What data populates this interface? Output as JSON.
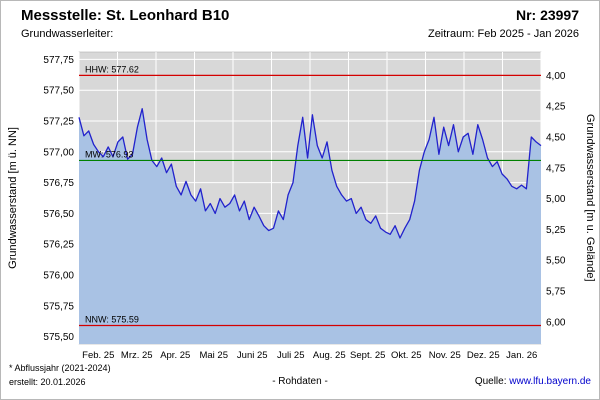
{
  "header": {
    "title": "Messstelle: St. Leonhard B10",
    "number_label": "Nr: 23997",
    "aquifer_label": "Grundwasserleiter:",
    "period_label": "Zeitraum: Feb 2025 - Jan 2026"
  },
  "footer": {
    "note": "* Abflussjahr (2021-2024)",
    "created": "erstellt: 20.01.2026",
    "data_type": "- Rohdaten -",
    "source_label": "Quelle:",
    "source_link": "www.lfu.bayern.de",
    "link_color": "#0000cc"
  },
  "chart_data": {
    "type": "area",
    "title": "",
    "ylabel_left": "Grundwasserstand [m ü. NN]",
    "ylabel_right": "Grundwasserstand [m u. Gelände]",
    "ylim": [
      575.44,
      577.81
    ],
    "grid": true,
    "legend": false,
    "left_ticks": {
      "values": [
        577.75,
        577.5,
        577.25,
        577.0,
        576.75,
        576.5,
        576.25,
        576.0,
        575.75,
        575.5
      ],
      "labels": [
        "577,75",
        "577,50",
        "577,25",
        "577,00",
        "576,75",
        "576,50",
        "576,25",
        "576,00",
        "575,75",
        "575,50"
      ]
    },
    "right_ticks": {
      "ground_elevation": 581.62,
      "depths": [
        4.0,
        4.25,
        4.5,
        4.75,
        5.0,
        5.25,
        5.5,
        5.75,
        6.0
      ],
      "labels": [
        "4,00",
        "4,25",
        "4,50",
        "4,75",
        "5,00",
        "5,25",
        "5,50",
        "5,75",
        "6,00"
      ]
    },
    "categories": [
      "Feb. 25",
      "Mrz. 25",
      "Apr. 25",
      "Mai 25",
      "Juni 25",
      "Juli 25",
      "Aug. 25",
      "Sept. 25",
      "Okt. 25",
      "Nov. 25",
      "Dez. 25",
      "Jan. 26"
    ],
    "values": [
      577.28,
      577.13,
      577.17,
      577.06,
      577.0,
      576.96,
      577.04,
      576.96,
      577.08,
      577.12,
      576.94,
      576.98,
      577.2,
      577.35,
      577.1,
      576.93,
      576.88,
      576.95,
      576.83,
      576.9,
      576.72,
      576.65,
      576.76,
      576.65,
      576.6,
      576.7,
      576.52,
      576.58,
      576.5,
      576.62,
      576.55,
      576.58,
      576.65,
      576.52,
      576.6,
      576.45,
      576.55,
      576.48,
      576.4,
      576.36,
      576.38,
      576.52,
      576.45,
      576.65,
      576.75,
      577.05,
      577.28,
      576.95,
      577.3,
      577.05,
      576.95,
      577.08,
      576.85,
      576.72,
      576.65,
      576.6,
      576.62,
      576.5,
      576.55,
      576.45,
      576.42,
      576.48,
      576.38,
      576.35,
      576.33,
      576.4,
      576.3,
      576.38,
      576.45,
      576.6,
      576.85,
      577.0,
      577.1,
      577.28,
      576.98,
      577.2,
      577.05,
      577.22,
      577.0,
      577.12,
      577.15,
      576.98,
      577.22,
      577.1,
      576.95,
      576.88,
      576.92,
      576.82,
      576.78,
      576.72,
      576.7,
      576.73,
      576.7,
      577.12,
      577.08,
      577.05
    ],
    "reference_lines": [
      {
        "name": "HHW",
        "label": "HHW: 577.62",
        "value": 577.62,
        "color": "#d40000"
      },
      {
        "name": "MW",
        "label": "MW: 576.93",
        "value": 576.93,
        "color": "#008000"
      },
      {
        "name": "NNW",
        "label": "NNW: 575.59",
        "value": 575.59,
        "color": "#d40000"
      }
    ],
    "colors": {
      "line": "#2222cc",
      "fill": "#a9c2e4",
      "plot_bg": "#d8d8d8",
      "grid": "#ffffff"
    }
  }
}
